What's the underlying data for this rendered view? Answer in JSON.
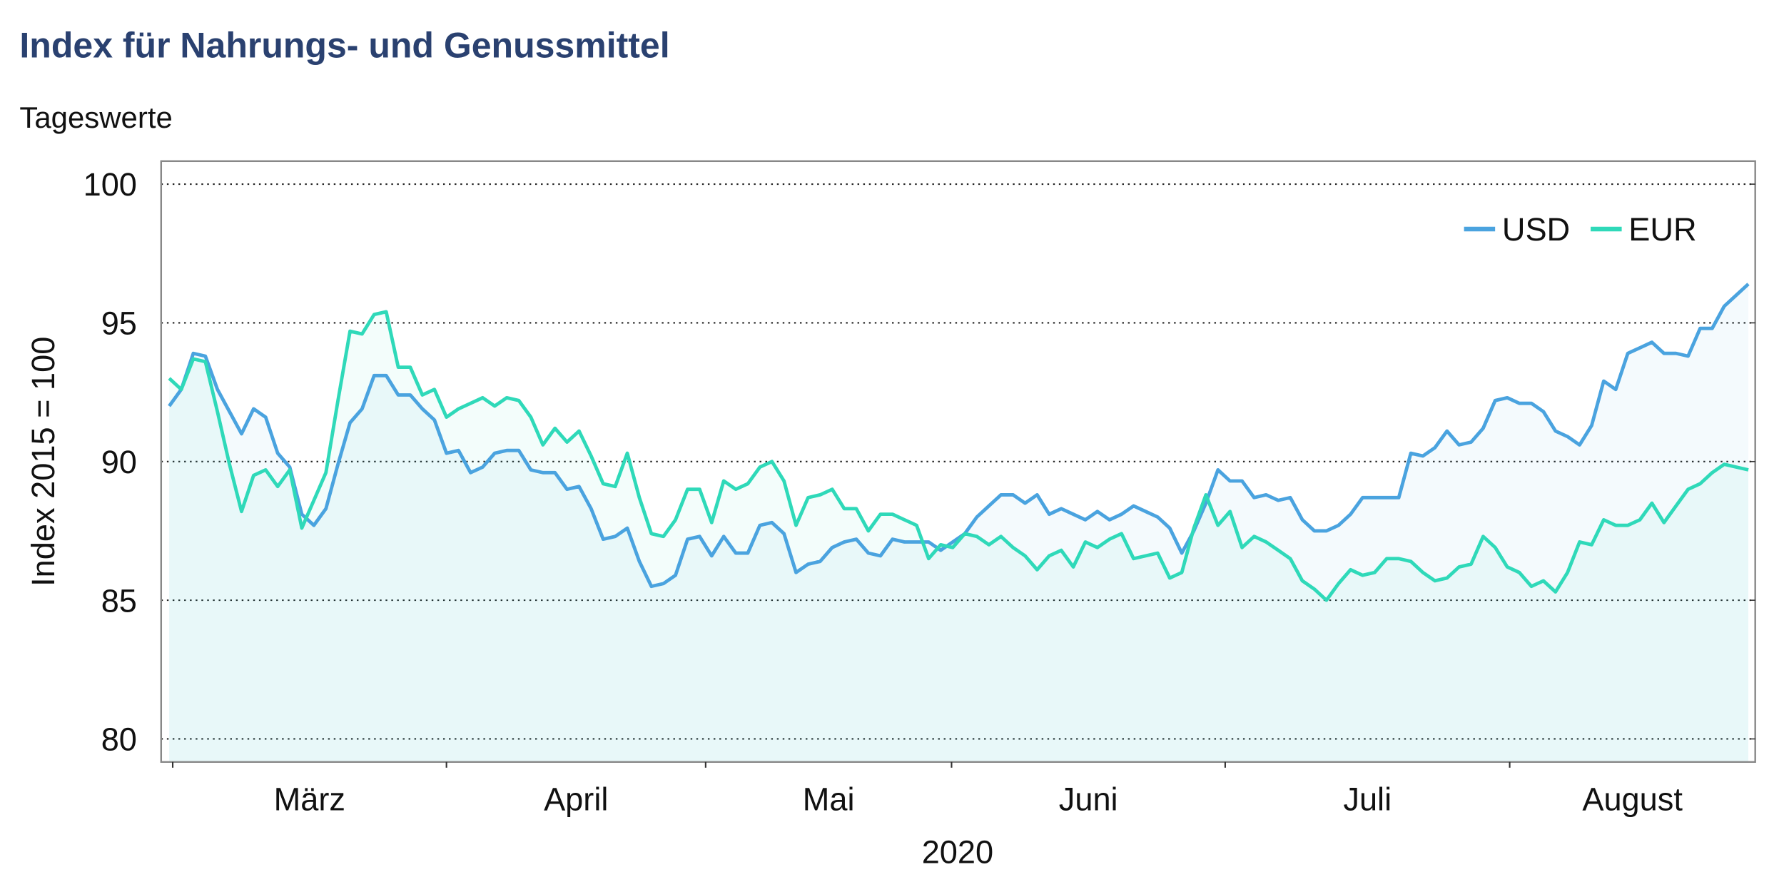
{
  "chart_data": {
    "type": "line",
    "title": "Index für Nahrungs- und Genussmittel",
    "subtitle": "Tageswerte",
    "y_label": "Index 2015 = 100",
    "x_label": "2020",
    "month_labels": [
      "März",
      "April",
      "Mai",
      "Juni",
      "Juli",
      "August"
    ],
    "xlim": [
      -0.67,
      131.57
    ],
    "xticks": [
      0.29,
      23,
      44.5,
      64.9,
      87.6,
      111.2
    ],
    "ylim": [
      79.17,
      100.83
    ],
    "yticks": [
      80,
      85,
      90,
      95,
      100
    ],
    "grid": true,
    "legend": "upper right",
    "series": [
      {
        "name": "USD",
        "color": "#4aa3df",
        "values": [
          92.0,
          92.6,
          93.9,
          93.8,
          92.6,
          91.8,
          91.0,
          91.9,
          91.6,
          90.3,
          89.8,
          88.1,
          87.7,
          88.3,
          89.9,
          91.4,
          91.9,
          93.1,
          93.1,
          92.4,
          92.4,
          91.9,
          91.5,
          90.3,
          90.4,
          89.6,
          89.8,
          90.3,
          90.4,
          90.4,
          89.7,
          89.6,
          89.6,
          89.0,
          89.1,
          88.3,
          87.2,
          87.3,
          87.6,
          86.4,
          85.5,
          85.6,
          85.9,
          87.2,
          87.3,
          86.6,
          87.3,
          86.7,
          86.7,
          87.7,
          87.8,
          87.4,
          86.0,
          86.3,
          86.4,
          86.9,
          87.1,
          87.2,
          86.7,
          86.6,
          87.2,
          87.1,
          87.1,
          87.1,
          86.8,
          87.1,
          87.4,
          88.0,
          88.4,
          88.8,
          88.8,
          88.5,
          88.8,
          88.1,
          88.3,
          88.1,
          87.9,
          88.2,
          87.9,
          88.1,
          88.4,
          88.2,
          88.0,
          87.6,
          86.7,
          87.5,
          88.5,
          89.7,
          89.3,
          89.3,
          88.7,
          88.8,
          88.6,
          88.7,
          87.9,
          87.5,
          87.5,
          87.7,
          88.1,
          88.7,
          88.7,
          88.7,
          88.7,
          90.3,
          90.2,
          90.5,
          91.1,
          90.6,
          90.7,
          91.2,
          92.2,
          92.3,
          92.1,
          92.1,
          91.8,
          91.1,
          90.9,
          90.6,
          91.3,
          92.9,
          92.6,
          93.9,
          94.1,
          94.3,
          93.9,
          93.9,
          93.8,
          94.8,
          94.8,
          95.6,
          96.0,
          96.4
        ]
      },
      {
        "name": "EUR",
        "color": "#2fd9b9",
        "values": [
          93.0,
          92.6,
          93.7,
          93.6,
          91.8,
          89.9,
          88.2,
          89.5,
          89.7,
          89.1,
          89.7,
          87.6,
          88.6,
          89.6,
          92.2,
          94.7,
          94.6,
          95.3,
          95.4,
          93.4,
          93.4,
          92.4,
          92.6,
          91.6,
          91.9,
          92.1,
          92.3,
          92.0,
          92.3,
          92.2,
          91.6,
          90.6,
          91.2,
          90.7,
          91.1,
          90.2,
          89.2,
          89.1,
          90.3,
          88.7,
          87.4,
          87.3,
          87.9,
          89.0,
          89.0,
          87.8,
          89.3,
          89.0,
          89.2,
          89.8,
          90.0,
          89.3,
          87.7,
          88.7,
          88.8,
          89.0,
          88.3,
          88.3,
          87.5,
          88.1,
          88.1,
          87.9,
          87.7,
          86.5,
          87.0,
          86.9,
          87.4,
          87.3,
          87.0,
          87.3,
          86.9,
          86.6,
          86.1,
          86.6,
          86.8,
          86.2,
          87.1,
          86.9,
          87.2,
          87.4,
          86.5,
          86.6,
          86.7,
          85.8,
          86.0,
          87.6,
          88.8,
          87.7,
          88.2,
          86.9,
          87.3,
          87.1,
          86.8,
          86.5,
          85.7,
          85.4,
          85.0,
          85.6,
          86.1,
          85.9,
          86.0,
          86.5,
          86.5,
          86.4,
          86.0,
          85.7,
          85.8,
          86.2,
          86.3,
          87.3,
          86.9,
          86.2,
          86.0,
          85.5,
          85.7,
          85.3,
          86.0,
          87.1,
          87.0,
          87.9,
          87.7,
          87.7,
          87.9,
          88.5,
          87.8,
          88.4,
          89.0,
          89.2,
          89.6,
          89.9,
          89.8,
          89.7
        ]
      }
    ]
  }
}
